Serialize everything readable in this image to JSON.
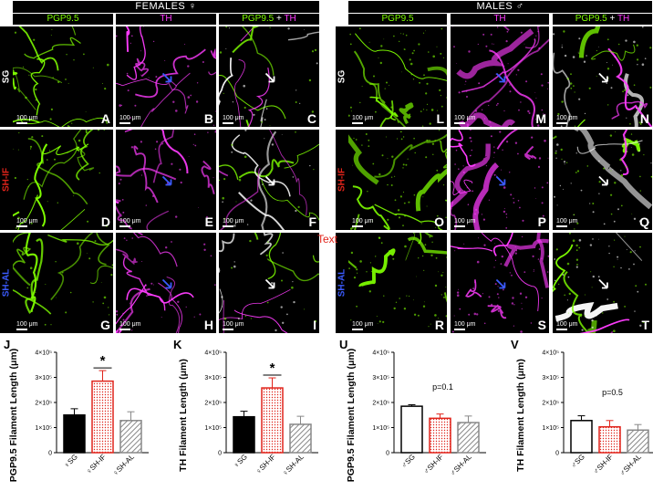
{
  "females": {
    "header": "FEMALES ♀",
    "columns": {
      "a": "PGP9.5",
      "b": "TH",
      "c_left": "PGP9.5",
      "c_plus": " + ",
      "c_right": "TH"
    },
    "rows": [
      "SG",
      "SH-IF",
      "SH-AL"
    ],
    "letters": [
      [
        "A",
        "B",
        "C"
      ],
      [
        "D",
        "E",
        "F"
      ],
      [
        "G",
        "H",
        "I"
      ]
    ],
    "scale": "100 μm"
  },
  "males": {
    "header": "MALES ♂",
    "columns": {
      "a": "PGP9.5",
      "b": "TH",
      "c_left": "PGP9.5",
      "c_plus": " + ",
      "c_right": "TH"
    },
    "rows": [
      "SG",
      "SH-IF",
      "SH-AL"
    ],
    "letters": [
      [
        "L",
        "M",
        "N"
      ],
      [
        "O",
        "P",
        "Q"
      ],
      [
        "R",
        "S",
        "T"
      ]
    ],
    "scale": "100 μm"
  },
  "overlay_text": "Text",
  "colors": {
    "green": "#7fff00",
    "magenta": "#ff3cff",
    "red": "#e0241b",
    "blue": "#3b5bff",
    "white": "#ffffff"
  },
  "chart_data": [
    {
      "panel": "J",
      "type": "bar",
      "ylabel": "PGP9.5 Filament Length (μm)",
      "yticks": [
        "0",
        "1×10⁵",
        "2×10⁵",
        "3×10⁵",
        "4×10⁵"
      ],
      "ylim": [
        0,
        400000
      ],
      "categories": [
        "♀SG",
        "♀SH-IF",
        "♀SH-AL"
      ],
      "values": [
        150000,
        285000,
        128000
      ],
      "errors": [
        25000,
        42000,
        35000
      ],
      "styles": [
        "solid-black",
        "dotted-red",
        "hatched-gray"
      ],
      "annotation": "*"
    },
    {
      "panel": "K",
      "type": "bar",
      "ylabel": "TH Filament Length (μm)",
      "yticks": [
        "0",
        "1×10⁵",
        "2×10⁵",
        "3×10⁵",
        "4×10⁵"
      ],
      "ylim": [
        0,
        400000
      ],
      "categories": [
        "♀SG",
        "♀SH-IF",
        "♀SH-AL"
      ],
      "values": [
        143000,
        258000,
        113000
      ],
      "errors": [
        22000,
        40000,
        32000
      ],
      "styles": [
        "solid-black",
        "dotted-red",
        "hatched-gray"
      ],
      "annotation": "*"
    },
    {
      "panel": "U",
      "type": "bar",
      "ylabel": "PGP9.5 Filament Length (μm)",
      "yticks": [
        "0",
        "1×10⁵",
        "2×10⁵",
        "3×10⁵",
        "4×10⁵"
      ],
      "ylim": [
        0,
        400000
      ],
      "categories": [
        "♂SG",
        "♂SH-IF",
        "♂SH-AL"
      ],
      "values": [
        185000,
        137000,
        120000
      ],
      "errors": [
        6000,
        17000,
        26000
      ],
      "styles": [
        "open-black",
        "dotted-red",
        "hatched-gray"
      ],
      "annotation": "p=0.1"
    },
    {
      "panel": "V",
      "type": "bar",
      "ylabel": "TH Filament Length (μm)",
      "yticks": [
        "0",
        "1×10⁵",
        "2×10⁵",
        "3×10⁵",
        "4×10⁵"
      ],
      "ylim": [
        0,
        400000
      ],
      "categories": [
        "♂SG",
        "♂SH-IF",
        "♂SH-AL"
      ],
      "values": [
        128000,
        103000,
        90000
      ],
      "errors": [
        19000,
        25000,
        22000
      ],
      "styles": [
        "open-black",
        "dotted-red",
        "hatched-gray"
      ],
      "annotation": "p=0.5"
    }
  ]
}
